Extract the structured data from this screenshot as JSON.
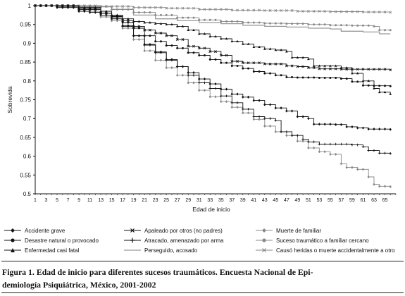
{
  "chart_data": {
    "type": "line",
    "title": "",
    "xlabel": "Edad de inicio",
    "ylabel": "Sobrevida",
    "xlim": [
      1,
      67
    ],
    "ylim": [
      0.5,
      1.0
    ],
    "x_ticks": [
      "1",
      "3",
      "5",
      "7",
      "9",
      "11",
      "13",
      "15",
      "17",
      "19",
      "21",
      "23",
      "25",
      "27",
      "29",
      "31",
      "33",
      "35",
      "37",
      "39",
      "41",
      "43",
      "45",
      "47",
      "49",
      "51",
      "53",
      "55",
      "57",
      "59",
      "61",
      "63",
      "65"
    ],
    "y_ticks": [
      "1",
      "0.95",
      "0.9",
      "0.85",
      "0.8",
      "0.75",
      "0.7",
      "0.65",
      "0.6",
      "0.55",
      "0.5"
    ],
    "grid": false,
    "legend_position": "bottom",
    "series": [
      {
        "name": "Accidente grave",
        "marker": "diamond",
        "color": "#111111",
        "points": [
          [
            1,
            1.0
          ],
          [
            5,
            0.995
          ],
          [
            9,
            0.985
          ],
          [
            11,
            0.982
          ],
          [
            13,
            0.975
          ],
          [
            15,
            0.965
          ],
          [
            17,
            0.947
          ],
          [
            19,
            0.92
          ],
          [
            21,
            0.897
          ],
          [
            23,
            0.877
          ],
          [
            25,
            0.857
          ],
          [
            27,
            0.838
          ],
          [
            29,
            0.822
          ],
          [
            31,
            0.805
          ],
          [
            33,
            0.792
          ],
          [
            35,
            0.778
          ],
          [
            37,
            0.765
          ],
          [
            39,
            0.757
          ],
          [
            41,
            0.748
          ],
          [
            43,
            0.737
          ],
          [
            45,
            0.728
          ],
          [
            47,
            0.72
          ],
          [
            49,
            0.705
          ],
          [
            51,
            0.7
          ],
          [
            52,
            0.685
          ],
          [
            56,
            0.684
          ],
          [
            58,
            0.678
          ],
          [
            60,
            0.675
          ],
          [
            62,
            0.672
          ],
          [
            66,
            0.671
          ]
        ]
      },
      {
        "name": "Desastre natural o provocado",
        "marker": "circle",
        "color": "#111111",
        "points": [
          [
            1,
            1.0
          ],
          [
            5,
            0.998
          ],
          [
            9,
            0.993
          ],
          [
            13,
            0.98
          ],
          [
            15,
            0.97
          ],
          [
            17,
            0.955
          ],
          [
            19,
            0.94
          ],
          [
            21,
            0.92
          ],
          [
            23,
            0.905
          ],
          [
            25,
            0.894
          ],
          [
            27,
            0.887
          ],
          [
            29,
            0.875
          ],
          [
            31,
            0.868
          ],
          [
            33,
            0.857
          ],
          [
            35,
            0.848
          ],
          [
            37,
            0.84
          ],
          [
            39,
            0.833
          ],
          [
            41,
            0.825
          ],
          [
            43,
            0.82
          ],
          [
            45,
            0.815
          ],
          [
            47,
            0.81
          ],
          [
            49,
            0.809
          ],
          [
            53,
            0.808
          ],
          [
            57,
            0.806
          ],
          [
            59,
            0.798
          ],
          [
            61,
            0.788
          ],
          [
            63,
            0.787
          ],
          [
            66,
            0.786
          ]
        ]
      },
      {
        "name": "Enfermedad casi fatal",
        "marker": "triangle",
        "color": "#111111",
        "points": [
          [
            1,
            1.0
          ],
          [
            9,
            0.995
          ],
          [
            13,
            0.985
          ],
          [
            15,
            0.975
          ],
          [
            17,
            0.965
          ],
          [
            19,
            0.958
          ],
          [
            21,
            0.955
          ],
          [
            23,
            0.952
          ],
          [
            25,
            0.95
          ],
          [
            27,
            0.945
          ],
          [
            29,
            0.935
          ],
          [
            31,
            0.925
          ],
          [
            33,
            0.918
          ],
          [
            35,
            0.912
          ],
          [
            37,
            0.905
          ],
          [
            39,
            0.898
          ],
          [
            41,
            0.89
          ],
          [
            43,
            0.885
          ],
          [
            45,
            0.882
          ],
          [
            47,
            0.878
          ],
          [
            48,
            0.862
          ],
          [
            51,
            0.858
          ],
          [
            52,
            0.84
          ],
          [
            57,
            0.835
          ],
          [
            59,
            0.82
          ],
          [
            61,
            0.8
          ],
          [
            63,
            0.78
          ],
          [
            64,
            0.77
          ],
          [
            66,
            0.765
          ]
        ]
      },
      {
        "name": "Apaleado por otros (no padres)",
        "marker": "x",
        "color": "#111111",
        "points": [
          [
            1,
            1.0
          ],
          [
            9,
            0.99
          ],
          [
            13,
            0.98
          ],
          [
            15,
            0.972
          ],
          [
            17,
            0.96
          ],
          [
            19,
            0.945
          ],
          [
            21,
            0.935
          ],
          [
            23,
            0.927
          ],
          [
            25,
            0.92
          ],
          [
            27,
            0.91
          ],
          [
            29,
            0.892
          ],
          [
            31,
            0.887
          ],
          [
            33,
            0.878
          ],
          [
            35,
            0.868
          ],
          [
            37,
            0.852
          ],
          [
            39,
            0.848
          ],
          [
            43,
            0.845
          ],
          [
            47,
            0.84
          ],
          [
            49,
            0.838
          ],
          [
            51,
            0.835
          ],
          [
            53,
            0.832
          ],
          [
            57,
            0.831
          ],
          [
            66,
            0.829
          ]
        ]
      },
      {
        "name": "Atracado, amenazado por arma",
        "marker": "plus",
        "color": "#111111",
        "points": [
          [
            1,
            1.0
          ],
          [
            9,
            0.99
          ],
          [
            13,
            0.98
          ],
          [
            15,
            0.965
          ],
          [
            17,
            0.945
          ],
          [
            19,
            0.92
          ],
          [
            21,
            0.895
          ],
          [
            23,
            0.875
          ],
          [
            25,
            0.855
          ],
          [
            27,
            0.838
          ],
          [
            29,
            0.815
          ],
          [
            31,
            0.795
          ],
          [
            33,
            0.78
          ],
          [
            35,
            0.76
          ],
          [
            37,
            0.742
          ],
          [
            39,
            0.725
          ],
          [
            41,
            0.705
          ],
          [
            43,
            0.7
          ],
          [
            45,
            0.695
          ],
          [
            46,
            0.665
          ],
          [
            48,
            0.655
          ],
          [
            50,
            0.645
          ],
          [
            51,
            0.638
          ],
          [
            53,
            0.632
          ],
          [
            57,
            0.632
          ],
          [
            59,
            0.63
          ],
          [
            61,
            0.625
          ],
          [
            62,
            0.615
          ],
          [
            64,
            0.608
          ],
          [
            66,
            0.607
          ]
        ]
      },
      {
        "name": "Perseguido, acosado",
        "marker": "line",
        "color": "#999999",
        "points": [
          [
            1,
            1.0
          ],
          [
            9,
            0.997
          ],
          [
            15,
            0.99
          ],
          [
            19,
            0.975
          ],
          [
            23,
            0.965
          ],
          [
            27,
            0.96
          ],
          [
            31,
            0.955
          ],
          [
            35,
            0.952
          ],
          [
            39,
            0.948
          ],
          [
            43,
            0.945
          ],
          [
            47,
            0.943
          ],
          [
            51,
            0.94
          ],
          [
            55,
            0.938
          ],
          [
            57,
            0.932
          ],
          [
            61,
            0.93
          ],
          [
            64,
            0.925
          ],
          [
            66,
            0.925
          ]
        ]
      },
      {
        "name": "Muerte de familiar",
        "marker": "diamond",
        "color": "#888888",
        "points": [
          [
            1,
            1.0
          ],
          [
            5,
            0.995
          ],
          [
            9,
            0.985
          ],
          [
            13,
            0.97
          ],
          [
            15,
            0.96
          ],
          [
            17,
            0.94
          ],
          [
            19,
            0.91
          ],
          [
            21,
            0.88
          ],
          [
            23,
            0.855
          ],
          [
            25,
            0.835
          ],
          [
            27,
            0.815
          ],
          [
            29,
            0.795
          ],
          [
            31,
            0.775
          ],
          [
            33,
            0.758
          ],
          [
            35,
            0.745
          ],
          [
            37,
            0.73
          ],
          [
            39,
            0.715
          ],
          [
            41,
            0.698
          ],
          [
            43,
            0.68
          ],
          [
            45,
            0.665
          ],
          [
            47,
            0.655
          ],
          [
            49,
            0.64
          ],
          [
            51,
            0.622
          ],
          [
            53,
            0.612
          ],
          [
            55,
            0.605
          ],
          [
            57,
            0.58
          ],
          [
            58,
            0.57
          ],
          [
            60,
            0.565
          ],
          [
            62,
            0.545
          ],
          [
            63,
            0.525
          ],
          [
            64,
            0.52
          ],
          [
            66,
            0.519
          ]
        ]
      },
      {
        "name": "Suceso traumático a familiar cercano",
        "marker": "circle",
        "color": "#888888",
        "points": [
          [
            1,
            1.0
          ],
          [
            9,
            0.998
          ],
          [
            15,
            0.99
          ],
          [
            19,
            0.982
          ],
          [
            23,
            0.975
          ],
          [
            27,
            0.968
          ],
          [
            31,
            0.962
          ],
          [
            35,
            0.958
          ],
          [
            39,
            0.955
          ],
          [
            43,
            0.953
          ],
          [
            47,
            0.952
          ],
          [
            51,
            0.95
          ],
          [
            55,
            0.948
          ],
          [
            59,
            0.947
          ],
          [
            63,
            0.945
          ],
          [
            64,
            0.935
          ],
          [
            66,
            0.935
          ]
        ]
      },
      {
        "name": "Causó heridas o muerte accidentalmente a otro",
        "marker": "x",
        "color": "#888888",
        "points": [
          [
            1,
            1.0
          ],
          [
            13,
            0.998
          ],
          [
            19,
            0.995
          ],
          [
            25,
            0.993
          ],
          [
            31,
            0.99
          ],
          [
            37,
            0.988
          ],
          [
            43,
            0.987
          ],
          [
            49,
            0.985
          ],
          [
            55,
            0.984
          ],
          [
            61,
            0.983
          ],
          [
            66,
            0.982
          ]
        ]
      }
    ]
  },
  "caption": {
    "line1": "Figura 1. Edad de inicio para diferentes sucesos traumáticos. Encuesta Nacional de Epi-",
    "line2": "demiología Psiquiátrica, México, 2001-2002"
  }
}
